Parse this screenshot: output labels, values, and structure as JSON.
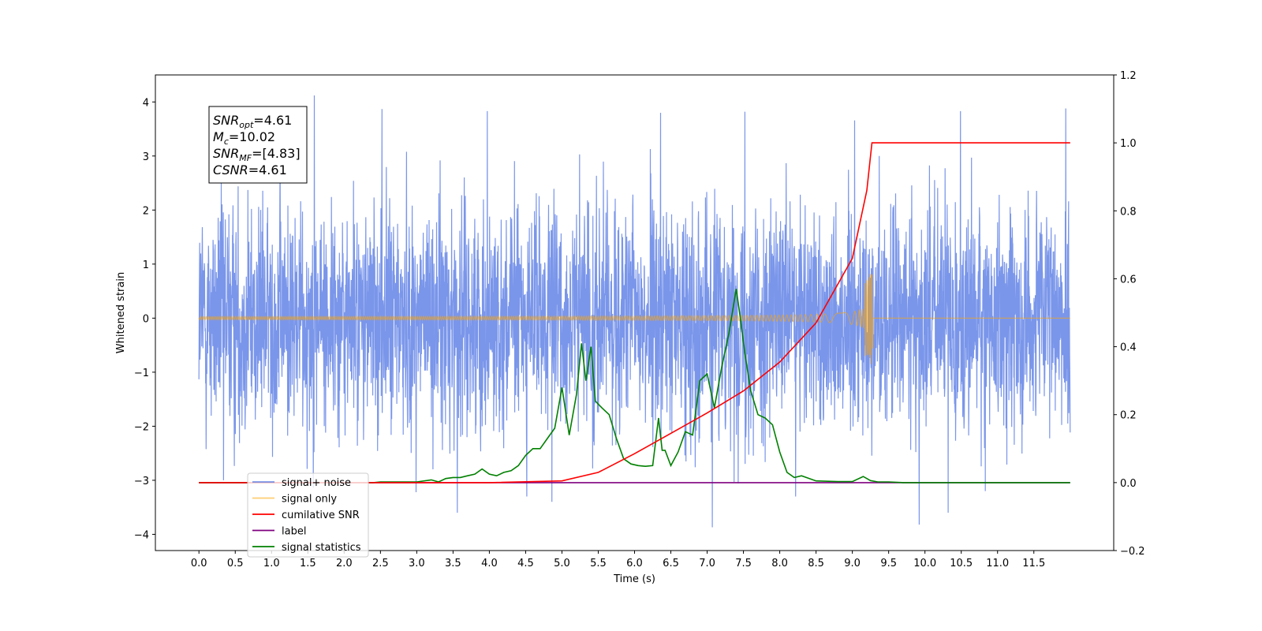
{
  "chart_data": {
    "type": "line",
    "xlabel": "Time (s)",
    "ylabel": "Whitened strain",
    "xlim": [
      -0.6,
      12.6
    ],
    "ylim": [
      -4.3,
      4.5
    ],
    "y2lim": [
      -0.2,
      1.2
    ],
    "x_ticks": [
      "0.0",
      "0.5",
      "1.0",
      "1.5",
      "2.0",
      "2.5",
      "3.0",
      "3.5",
      "4.0",
      "4.5",
      "5.0",
      "5.5",
      "6.0",
      "6.5",
      "7.0",
      "7.5",
      "8.0",
      "8.5",
      "9.0",
      "9.5",
      "10.0",
      "10.5",
      "11.0",
      "11.5"
    ],
    "y_ticks": [
      "4",
      "3",
      "2",
      "1",
      "0",
      "−1",
      "−2",
      "−3",
      "−4"
    ],
    "y2_ticks": [
      "1.2",
      "1.0",
      "0.8",
      "0.6",
      "0.4",
      "0.2",
      "0.0",
      "−0.2"
    ],
    "grid": false,
    "legend_position": "lower-left",
    "annotation": {
      "lines": [
        {
          "sym": "SNR",
          "sub": "opt",
          "value": "=4.61"
        },
        {
          "sym": "M",
          "sub": "c",
          "value": "=10.02"
        },
        {
          "sym": "SNR",
          "sub": "MF",
          "value": "=[4.83]"
        },
        {
          "sym": "CSNR",
          "sub": "",
          "value": "=4.61"
        }
      ]
    },
    "series": [
      {
        "name": "signal+ noise",
        "color": "#4169e1",
        "axis": "left",
        "description_values": "noise-like strain between about -3.9 and 4.1 over 0 to 12 s",
        "x_range": [
          0.0,
          12.0
        ],
        "spikes": [
          [
            1.59,
            4.12
          ],
          [
            2.52,
            3.87
          ],
          [
            3.97,
            3.83
          ],
          [
            6.36,
            3.8
          ],
          [
            7.52,
            3.82
          ],
          [
            9.03,
            3.66
          ],
          [
            10.49,
            3.83
          ],
          [
            11.94,
            3.88
          ],
          [
            7.07,
            -3.87
          ],
          [
            9.92,
            -3.82
          ],
          [
            3.56,
            -3.6
          ],
          [
            10.32,
            -3.6
          ],
          [
            4.86,
            -3.4
          ],
          [
            8.22,
            -3.3
          ],
          [
            10.83,
            -3.2
          ],
          [
            0.34,
            -3.0
          ]
        ]
      },
      {
        "name": "signal only",
        "color": "#ffa500",
        "axis": "left",
        "chirp": {
          "start_x": 0.0,
          "merger_x": 9.27,
          "end_x": 12.0,
          "peak_amp": 0.8,
          "trough_amp": -0.55
        }
      },
      {
        "name": "cumilative SNR",
        "color": "#ff0000",
        "axis": "right",
        "x": [
          0.0,
          4.0,
          5.0,
          5.5,
          6.0,
          6.5,
          7.0,
          7.5,
          8.0,
          8.5,
          9.0,
          9.2,
          9.25,
          9.27,
          12.0
        ],
        "y": [
          0.0,
          0.0,
          0.005,
          0.03,
          0.085,
          0.145,
          0.205,
          0.27,
          0.355,
          0.47,
          0.66,
          0.86,
          0.96,
          1.0,
          1.0
        ]
      },
      {
        "name": "label",
        "color": "#800080",
        "axis": "right",
        "x": [
          0.0,
          12.0
        ],
        "y": [
          0.0,
          0.0
        ]
      },
      {
        "name": "signal statistics",
        "color": "#008000",
        "axis": "right",
        "x": [
          0.0,
          2.4,
          2.5,
          2.8,
          3.0,
          3.2,
          3.3,
          3.4,
          3.5,
          3.6,
          3.7,
          3.8,
          3.9,
          4.0,
          4.1,
          4.2,
          4.3,
          4.4,
          4.5,
          4.6,
          4.7,
          4.8,
          4.9,
          5.0,
          5.1,
          5.2,
          5.27,
          5.33,
          5.4,
          5.46,
          5.55,
          5.65,
          5.75,
          5.85,
          5.95,
          6.05,
          6.15,
          6.25,
          6.33,
          6.38,
          6.42,
          6.5,
          6.6,
          6.7,
          6.8,
          6.9,
          7.0,
          7.1,
          7.2,
          7.3,
          7.4,
          7.46,
          7.52,
          7.6,
          7.7,
          7.8,
          7.9,
          8.0,
          8.1,
          8.2,
          8.3,
          8.5,
          8.8,
          9.0,
          9.15,
          9.25,
          9.35,
          9.5,
          9.7,
          12.0
        ],
        "y": [
          0.0,
          0.0,
          0.002,
          0.002,
          0.002,
          0.008,
          0.002,
          0.012,
          0.015,
          0.015,
          0.02,
          0.025,
          0.04,
          0.025,
          0.02,
          0.03,
          0.035,
          0.05,
          0.08,
          0.1,
          0.1,
          0.13,
          0.16,
          0.28,
          0.14,
          0.26,
          0.41,
          0.3,
          0.4,
          0.24,
          0.22,
          0.2,
          0.13,
          0.07,
          0.055,
          0.05,
          0.048,
          0.05,
          0.19,
          0.095,
          0.095,
          0.05,
          0.09,
          0.15,
          0.14,
          0.3,
          0.32,
          0.22,
          0.34,
          0.44,
          0.57,
          0.48,
          0.38,
          0.27,
          0.2,
          0.19,
          0.17,
          0.09,
          0.03,
          0.015,
          0.02,
          0.005,
          0.003,
          0.003,
          0.018,
          0.006,
          0.002,
          0.002,
          0.0,
          0.0
        ]
      }
    ]
  }
}
